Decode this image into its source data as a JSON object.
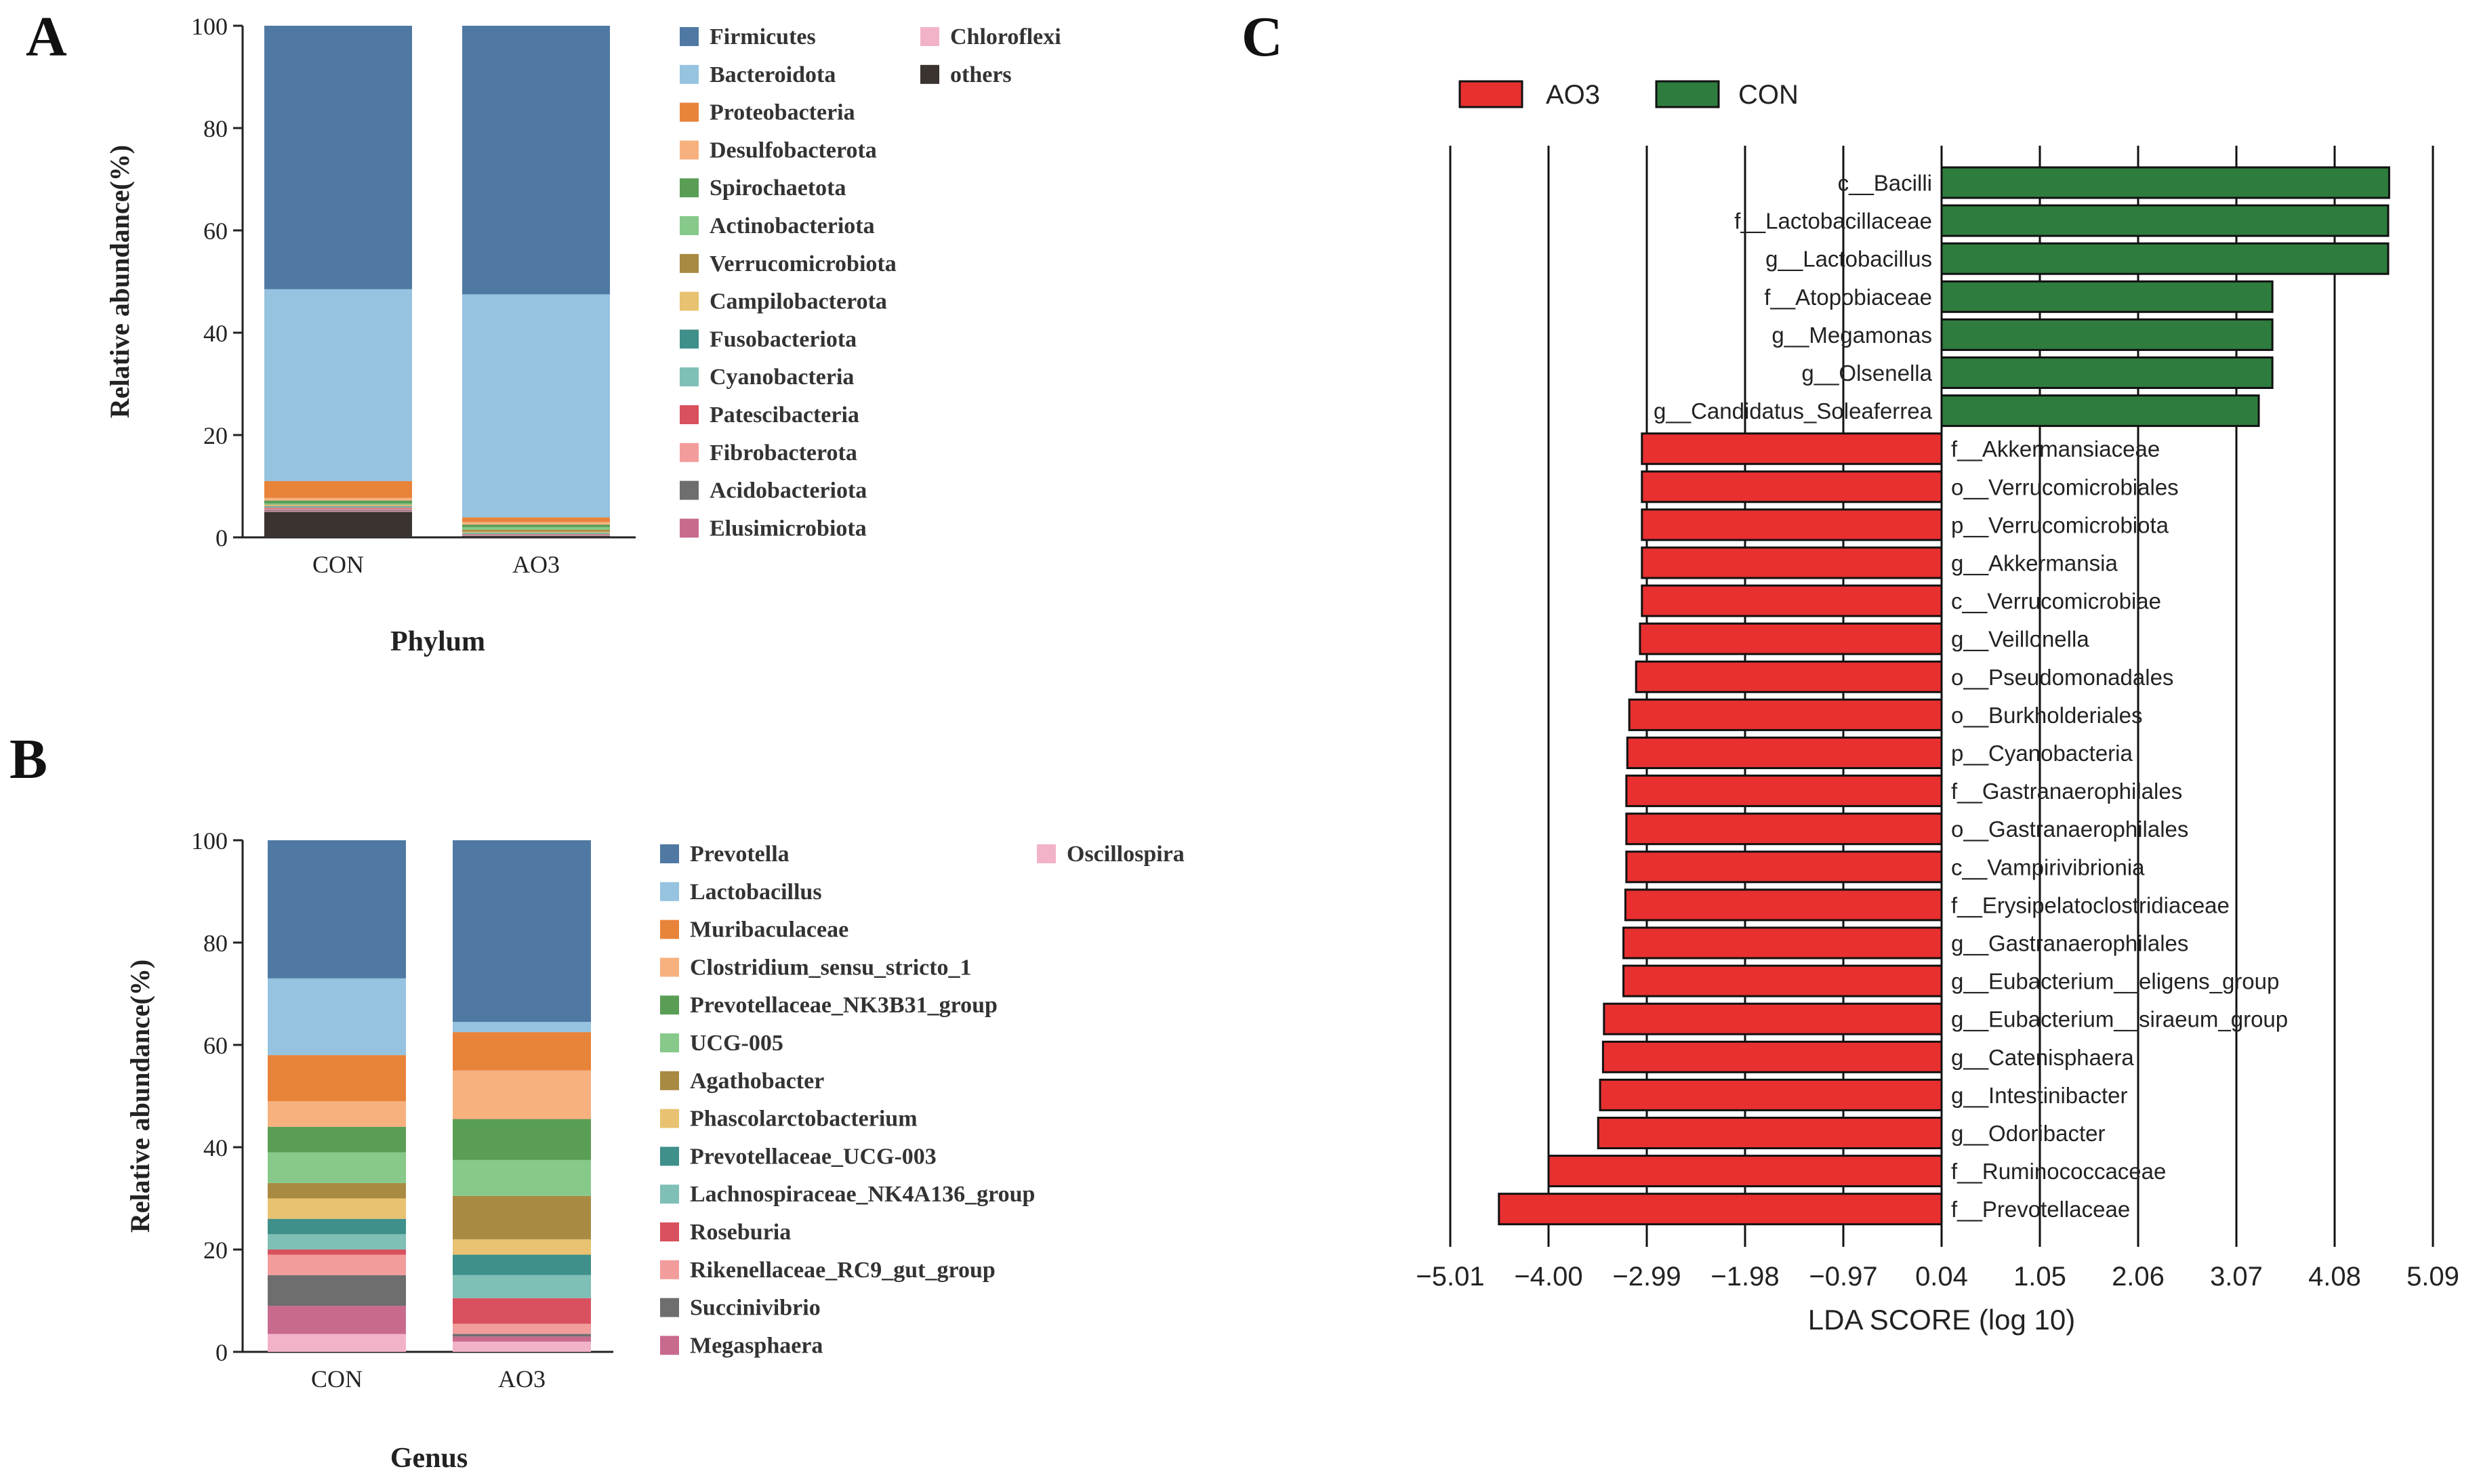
{
  "panel_labels": {
    "a": "A",
    "b": "B",
    "c": "C"
  },
  "chart_data": [
    {
      "id": "A",
      "type": "bar",
      "stacked": true,
      "title": "",
      "xlabel": "Phylum",
      "ylabel": "Relative abundance(%)",
      "ylim": [
        0,
        100
      ],
      "yticks": [
        "0",
        "20",
        "40",
        "60",
        "80",
        "100"
      ],
      "categories": [
        "CON",
        "AO3"
      ],
      "legend_position": "right, two columns",
      "series": [
        {
          "name": "others",
          "color": "#3a3330",
          "values": [
            5.0,
            0.3
          ]
        },
        {
          "name": "Chloroflexi",
          "color": "#f2b3c9",
          "values": [
            0.1,
            0.05
          ]
        },
        {
          "name": "Elusimicrobiota",
          "color": "#c86a8e",
          "values": [
            0.1,
            0.05
          ]
        },
        {
          "name": "Acidobacteriota",
          "color": "#6e6e6e",
          "values": [
            0.2,
            0.05
          ]
        },
        {
          "name": "Fibrobacterota",
          "color": "#f39c9c",
          "values": [
            0.2,
            0.05
          ]
        },
        {
          "name": "Patescibacteria",
          "color": "#d9515e",
          "values": [
            0.2,
            0.1
          ]
        },
        {
          "name": "Cyanobacteria",
          "color": "#7fbfb5",
          "values": [
            0.2,
            0.2
          ]
        },
        {
          "name": "Fusobacteriota",
          "color": "#3f8f8a",
          "values": [
            0.1,
            0.1
          ]
        },
        {
          "name": "Campilobacterota",
          "color": "#e8c270",
          "values": [
            0.2,
            0.2
          ]
        },
        {
          "name": "Verrucomicrobiota",
          "color": "#a88a42",
          "values": [
            0.1,
            0.4
          ]
        },
        {
          "name": "Actinobacteriota",
          "color": "#86c98a",
          "values": [
            0.2,
            0.5
          ]
        },
        {
          "name": "Spirochaetota",
          "color": "#5a9e56",
          "values": [
            0.6,
            0.5
          ]
        },
        {
          "name": "Desulfobacterota",
          "color": "#f7b17f",
          "values": [
            0.5,
            0.5
          ]
        },
        {
          "name": "Proteobacteria",
          "color": "#e8833a",
          "values": [
            3.3,
            0.9
          ]
        },
        {
          "name": "Bacteroidota",
          "color": "#96c3e0",
          "values": [
            37.5,
            43.6
          ]
        },
        {
          "name": "Firmicutes",
          "color": "#4f79a3",
          "values": [
            51.5,
            52.5
          ]
        }
      ],
      "legend": {
        "col1": [
          "Firmicutes",
          "Bacteroidota",
          "Proteobacteria",
          "Desulfobacterota",
          "Spirochaetota",
          "Actinobacteriota",
          "Verrucomicrobiota",
          "Campilobacterota",
          "Fusobacteriota",
          "Cyanobacteria",
          "Patescibacteria",
          "Fibrobacterota",
          "Acidobacteriota",
          "Elusimicrobiota"
        ],
        "col2": [
          "Chloroflexi",
          "others"
        ]
      }
    },
    {
      "id": "B",
      "type": "bar",
      "stacked": true,
      "title": "",
      "xlabel": "Genus",
      "ylabel": "Relative abundance(%)",
      "ylim": [
        0,
        100
      ],
      "yticks": [
        "0",
        "20",
        "40",
        "60",
        "80",
        "100"
      ],
      "categories": [
        "CON",
        "AO3"
      ],
      "legend_position": "right, two columns",
      "series": [
        {
          "name": "Oscillospira",
          "color": "#f2b3c9",
          "values": [
            3.5,
            2.0
          ]
        },
        {
          "name": "Megasphaera",
          "color": "#c86a8e",
          "values": [
            5.5,
            1.0
          ]
        },
        {
          "name": "Succinivibrio",
          "color": "#6e6e6e",
          "values": [
            6.0,
            0.5
          ]
        },
        {
          "name": "Rikenellaceae_RC9_gut_group",
          "color": "#f39c9c",
          "values": [
            4.0,
            2.0
          ]
        },
        {
          "name": "Roseburia",
          "color": "#d9515e",
          "values": [
            1.0,
            5.0
          ]
        },
        {
          "name": "Lachnospiraceae_NK4A136_group",
          "color": "#7fbfb5",
          "values": [
            3.0,
            4.5
          ]
        },
        {
          "name": "Prevotellaceae_UCG-003",
          "color": "#3f8f8a",
          "values": [
            3.0,
            4.0
          ]
        },
        {
          "name": "Phascolarctobacterium",
          "color": "#e8c270",
          "values": [
            4.0,
            3.0
          ]
        },
        {
          "name": "Agathobacter",
          "color": "#a88a42",
          "values": [
            3.0,
            8.5
          ]
        },
        {
          "name": "UCG-005",
          "color": "#86c98a",
          "values": [
            6.0,
            7.0
          ]
        },
        {
          "name": "Prevotellaceae_NK3B31_group",
          "color": "#5a9e56",
          "values": [
            5.0,
            8.0
          ]
        },
        {
          "name": "Clostridium_sensu_stricto_1",
          "color": "#f7b17f",
          "values": [
            5.0,
            9.5
          ]
        },
        {
          "name": "Muribaculaceae",
          "color": "#e8833a",
          "values": [
            9.0,
            7.5
          ]
        },
        {
          "name": "Lactobacillus",
          "color": "#96c3e0",
          "values": [
            15.0,
            2.0
          ]
        },
        {
          "name": "Prevotella",
          "color": "#4f79a3",
          "values": [
            27.0,
            35.5
          ]
        }
      ],
      "legend": {
        "col1": [
          "Prevotella",
          "Lactobacillus",
          "Muribaculaceae",
          "Clostridium_sensu_stricto_1",
          "Prevotellaceae_NK3B31_group",
          "UCG-005",
          "Agathobacter",
          "Phascolarctobacterium",
          "Prevotellaceae_UCG-003",
          "Lachnospiraceae_NK4A136_group",
          "Roseburia",
          "Rikenellaceae_RC9_gut_group",
          "Succinivibrio",
          "Megasphaera"
        ],
        "col2": [
          "Oscillospira"
        ]
      }
    },
    {
      "id": "C",
      "type": "bar",
      "orientation": "horizontal",
      "title": "",
      "xlabel": "LDA SCORE (log 10)",
      "ylabel": "",
      "xlim": [
        -5.01,
        5.09
      ],
      "xticks": [
        "−5.01",
        "−4.00",
        "−2.99",
        "−1.98",
        "−0.97",
        "0.04",
        "1.05",
        "2.06",
        "3.07",
        "4.08",
        "5.09"
      ],
      "xtick_values": [
        -5.01,
        -4.0,
        -2.99,
        -1.98,
        -0.97,
        0.04,
        1.05,
        2.06,
        3.07,
        4.08,
        5.09
      ],
      "baseline": 0.04,
      "legend_position": "top-left",
      "legend": [
        {
          "name": "AO3",
          "color": "#e83030"
        },
        {
          "name": "CON",
          "color": "#2e7d3e"
        }
      ],
      "bars": [
        {
          "label": "c__Bacilli",
          "group": "CON",
          "value": 4.64
        },
        {
          "label": "f__Lactobacillaceae",
          "group": "CON",
          "value": 4.63
        },
        {
          "label": "g__Lactobacillus",
          "group": "CON",
          "value": 4.63
        },
        {
          "label": "f__Atopobiaceae",
          "group": "CON",
          "value": 3.44
        },
        {
          "label": "g__Megamonas",
          "group": "CON",
          "value": 3.44
        },
        {
          "label": "g__Olsenella",
          "group": "CON",
          "value": 3.44
        },
        {
          "label": "g__Candidatus_Soleaferrea",
          "group": "CON",
          "value": 3.3
        },
        {
          "label": "f__Akkermansiaceae",
          "group": "AO3",
          "value": -3.04
        },
        {
          "label": "o__Verrucomicrobiales",
          "group": "AO3",
          "value": -3.04
        },
        {
          "label": "p__Verrucomicrobiota",
          "group": "AO3",
          "value": -3.04
        },
        {
          "label": "g__Akkermansia",
          "group": "AO3",
          "value": -3.04
        },
        {
          "label": "c__Verrucomicrobiae",
          "group": "AO3",
          "value": -3.04
        },
        {
          "label": "g__Veillonella",
          "group": "AO3",
          "value": -3.06
        },
        {
          "label": "o__Pseudomonadales",
          "group": "AO3",
          "value": -3.1
        },
        {
          "label": "o__Burkholderiales",
          "group": "AO3",
          "value": -3.17
        },
        {
          "label": "p__Cyanobacteria",
          "group": "AO3",
          "value": -3.19
        },
        {
          "label": "f__Gastranaerophilales",
          "group": "AO3",
          "value": -3.2
        },
        {
          "label": "o__Gastranaerophilales",
          "group": "AO3",
          "value": -3.2
        },
        {
          "label": "c__Vampirivibrionia",
          "group": "AO3",
          "value": -3.2
        },
        {
          "label": "f__Erysipelatoclostridiaceae",
          "group": "AO3",
          "value": -3.21
        },
        {
          "label": "g__Gastranaerophilales",
          "group": "AO3",
          "value": -3.23
        },
        {
          "label": "g__Eubacterium__eligens_group",
          "group": "AO3",
          "value": -3.23
        },
        {
          "label": "g__Eubacterium__siraeum_group",
          "group": "AO3",
          "value": -3.43
        },
        {
          "label": "g__Catenisphaera",
          "group": "AO3",
          "value": -3.44
        },
        {
          "label": "g__Intestinibacter",
          "group": "AO3",
          "value": -3.47
        },
        {
          "label": "g__Odoribacter",
          "group": "AO3",
          "value": -3.49
        },
        {
          "label": "f__Ruminococcaceae",
          "group": "AO3",
          "value": -4.0
        },
        {
          "label": "f__Prevotellaceae",
          "group": "AO3",
          "value": -4.51
        }
      ]
    }
  ]
}
